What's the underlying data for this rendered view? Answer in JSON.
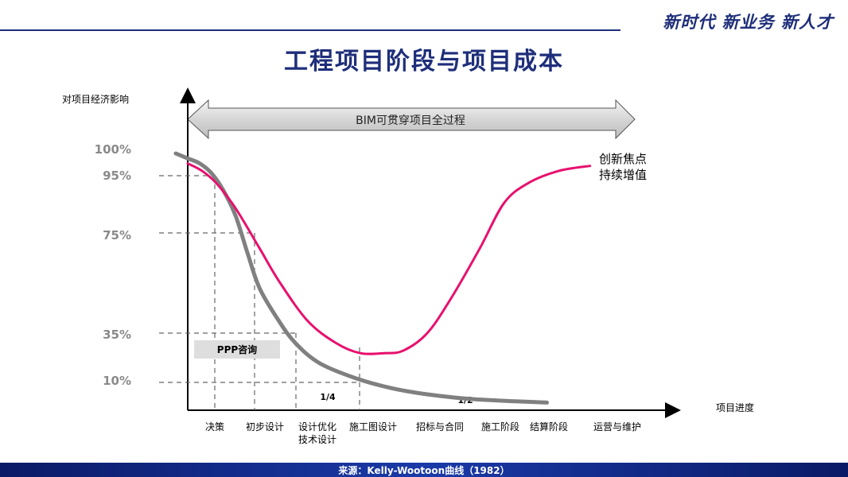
{
  "header": {
    "brand": "新时代 新业务 新人才",
    "title": "工程项目阶段与项目成本"
  },
  "footer": {
    "source": "来源：Kelly-Wootoon曲线（1982）"
  },
  "colors": {
    "navy": "#1e2e7a",
    "gray_curve": "#808080",
    "pink_curve": "#e8106e"
  },
  "chart_data": {
    "type": "line",
    "ylabel": "对项目经济影响",
    "xlabel": "项目进度",
    "y_ticks": [
      "100%",
      "95%",
      "75%",
      "35%",
      "10%"
    ],
    "x_categories": [
      "决策",
      "初步设计",
      "设计优化\n技术设计",
      "施工图设计",
      "招标与合同",
      "施工阶段",
      "结算阶段",
      "运营与维护"
    ],
    "series": [
      {
        "name": "",
        "color": "#808080",
        "points": [
          [
            -0.05,
            100
          ],
          [
            0.0,
            98
          ],
          [
            0.05,
            96
          ],
          [
            0.1,
            92
          ],
          [
            0.15,
            85
          ],
          [
            0.2,
            75
          ],
          [
            0.25,
            60
          ],
          [
            0.3,
            46
          ],
          [
            0.38,
            33
          ],
          [
            0.45,
            24
          ],
          [
            0.55,
            16
          ],
          [
            0.7,
            10
          ],
          [
            0.85,
            6
          ],
          [
            1.0,
            3.5
          ],
          [
            1.2,
            1.5
          ],
          [
            1.5,
            0.2
          ]
        ]
      },
      {
        "name": "",
        "color": "#e8106e",
        "points": [
          [
            0.0,
            96
          ],
          [
            0.06,
            93
          ],
          [
            0.12,
            88
          ],
          [
            0.2,
            78
          ],
          [
            0.3,
            62
          ],
          [
            0.38,
            49
          ],
          [
            0.5,
            33
          ],
          [
            0.62,
            24
          ],
          [
            0.72,
            20
          ],
          [
            0.82,
            20
          ],
          [
            0.9,
            21
          ],
          [
            1.0,
            28
          ],
          [
            1.1,
            42
          ],
          [
            1.22,
            62
          ],
          [
            1.32,
            80
          ],
          [
            1.42,
            88
          ],
          [
            1.55,
            93
          ],
          [
            1.68,
            95
          ]
        ]
      }
    ],
    "banner": "BIM可贯穿项目全过程",
    "annotations": {
      "innovation": [
        "创新焦点",
        "持续增值"
      ],
      "ppp": "PPP咨询",
      "quarter": "1/4",
      "half": "1/2"
    },
    "grid": false
  }
}
